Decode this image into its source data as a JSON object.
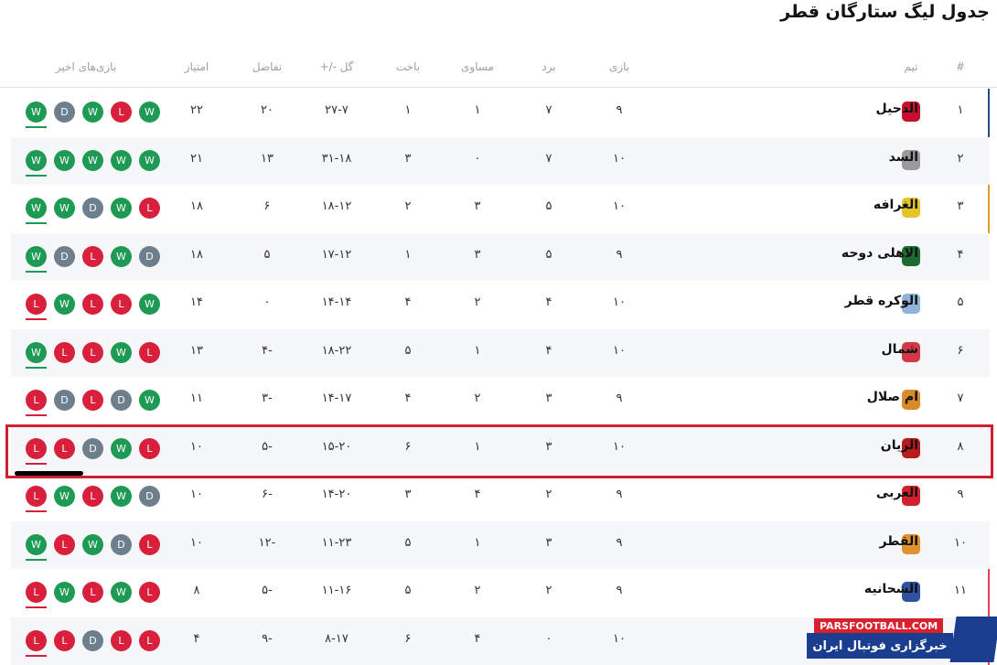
{
  "title": "جدول لیگ ستارگان قطر",
  "headers": {
    "rank": "#",
    "team": "تیم",
    "played": "بازی",
    "won": "برد",
    "drawn": "مساوی",
    "lost": "باخت",
    "goals": "گل -/+",
    "diff": "تفاضل",
    "points": "امتیاز",
    "form": "بازی‌های اخیر"
  },
  "colors": {
    "W": "#1f9a55",
    "L": "#d81f3c",
    "D": "#6d7f8d",
    "highlight": "#d0202f"
  },
  "rows": [
    {
      "rank": "۱",
      "team": "الدحیل",
      "logo": "#c8102e",
      "played": "۹",
      "won": "۷",
      "drawn": "۱",
      "lost": "۱",
      "goals": "۲۷-۷",
      "diff": "۲۰",
      "points": "۲۲",
      "form": [
        "W",
        "D",
        "W",
        "L",
        "W"
      ],
      "edge": "#1d4e89"
    },
    {
      "rank": "۲",
      "team": "السد",
      "logo": "#9a9a9a",
      "played": "۱۰",
      "won": "۷",
      "drawn": "۰",
      "lost": "۳",
      "goals": "۳۱-۱۸",
      "diff": "۱۳",
      "points": "۲۱",
      "form": [
        "W",
        "W",
        "W",
        "W",
        "W"
      ]
    },
    {
      "rank": "۳",
      "team": "الغرافه",
      "logo": "#e3c52a",
      "played": "۱۰",
      "won": "۵",
      "drawn": "۳",
      "lost": "۲",
      "goals": "۱۸-۱۲",
      "diff": "۶",
      "points": "۱۸",
      "form": [
        "W",
        "W",
        "D",
        "W",
        "L"
      ],
      "edge": "#e69a2e"
    },
    {
      "rank": "۴",
      "team": "الاهلی دوحه",
      "logo": "#1e6b32",
      "played": "۹",
      "won": "۵",
      "drawn": "۳",
      "lost": "۱",
      "goals": "۱۷-۱۲",
      "diff": "۵",
      "points": "۱۸",
      "form": [
        "W",
        "D",
        "L",
        "W",
        "D"
      ]
    },
    {
      "rank": "۵",
      "team": "الوکره قطر",
      "logo": "#8fb3d9",
      "played": "۱۰",
      "won": "۴",
      "drawn": "۲",
      "lost": "۴",
      "goals": "۱۴-۱۴",
      "diff": "۰",
      "points": "۱۴",
      "form": [
        "L",
        "W",
        "L",
        "L",
        "W"
      ]
    },
    {
      "rank": "۶",
      "team": "شمال",
      "logo": "#d23a4a",
      "played": "۱۰",
      "won": "۴",
      "drawn": "۱",
      "lost": "۵",
      "goals": "۱۸-۲۲",
      "diff": "-۴",
      "points": "۱۳",
      "form": [
        "W",
        "L",
        "L",
        "W",
        "L"
      ]
    },
    {
      "rank": "۷",
      "team": "ام صلال",
      "logo": "#d98a2b",
      "played": "۹",
      "won": "۳",
      "drawn": "۲",
      "lost": "۴",
      "goals": "۱۴-۱۷",
      "diff": "-۳",
      "points": "۱۱",
      "form": [
        "L",
        "D",
        "L",
        "D",
        "W"
      ]
    },
    {
      "rank": "۸",
      "team": "الریان",
      "logo": "#b71c1c",
      "played": "۱۰",
      "won": "۳",
      "drawn": "۱",
      "lost": "۶",
      "goals": "۱۵-۲۰",
      "diff": "-۵",
      "points": "۱۰",
      "form": [
        "L",
        "L",
        "D",
        "W",
        "L"
      ]
    },
    {
      "rank": "۹",
      "team": "العربی",
      "logo": "#d3202e",
      "played": "۹",
      "won": "۲",
      "drawn": "۴",
      "lost": "۳",
      "goals": "۱۴-۲۰",
      "diff": "-۶",
      "points": "۱۰",
      "form": [
        "L",
        "W",
        "L",
        "W",
        "D"
      ]
    },
    {
      "rank": "۱۰",
      "team": "القطر",
      "logo": "#e0922f",
      "played": "۹",
      "won": "۳",
      "drawn": "۱",
      "lost": "۵",
      "goals": "۱۱-۲۳",
      "diff": "-۱۲",
      "points": "۱۰",
      "form": [
        "W",
        "L",
        "W",
        "D",
        "L"
      ]
    },
    {
      "rank": "۱۱",
      "team": "الشحانیه",
      "logo": "#3050a0",
      "played": "۹",
      "won": "۲",
      "drawn": "۲",
      "lost": "۵",
      "goals": "۱۱-۱۶",
      "diff": "-۵",
      "points": "۸",
      "form": [
        "L",
        "W",
        "L",
        "W",
        "L"
      ],
      "edge": "#e04050"
    },
    {
      "rank": "",
      "team": "",
      "logo": "",
      "played": "۱۰",
      "won": "۰",
      "drawn": "۴",
      "lost": "۶",
      "goals": "۸-۱۷",
      "diff": "-۹",
      "points": "۴",
      "form": [
        "L",
        "L",
        "D",
        "L",
        "L"
      ],
      "edge": "#e04050"
    }
  ],
  "watermark": {
    "site": "PARSFOOTBALL.COM",
    "tagline": "خبرگزاری فوتبال ایران"
  }
}
